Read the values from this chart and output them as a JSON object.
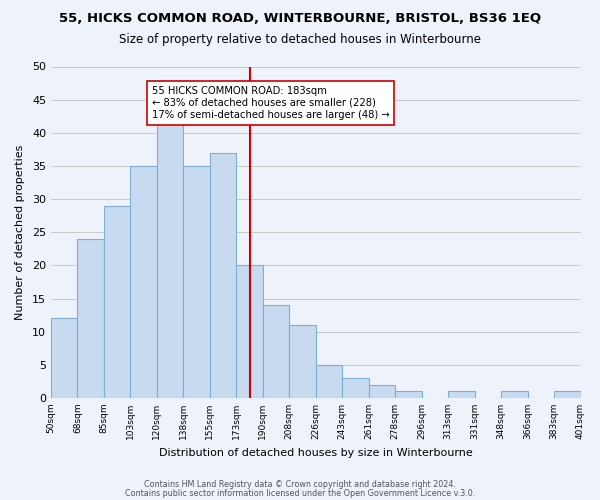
{
  "title": "55, HICKS COMMON ROAD, WINTERBOURNE, BRISTOL, BS36 1EQ",
  "subtitle": "Size of property relative to detached houses in Winterbourne",
  "xlabel": "Distribution of detached houses by size in Winterbourne",
  "ylabel": "Number of detached properties",
  "bin_edges": [
    "50sqm",
    "68sqm",
    "85sqm",
    "103sqm",
    "120sqm",
    "138sqm",
    "155sqm",
    "173sqm",
    "190sqm",
    "208sqm",
    "226sqm",
    "243sqm",
    "261sqm",
    "278sqm",
    "296sqm",
    "313sqm",
    "331sqm",
    "348sqm",
    "366sqm",
    "383sqm",
    "401sqm"
  ],
  "bar_values": [
    12,
    24,
    29,
    35,
    42,
    35,
    37,
    20,
    14,
    11,
    5,
    3,
    2,
    1,
    0,
    1,
    0,
    1,
    0,
    1
  ],
  "bar_color": "#c8daf0",
  "bar_edge_color": "#7bafd4",
  "grid_color": "#c8c8c8",
  "vline_x": 7.5,
  "vline_color": "#cc0000",
  "annotation_text": "55 HICKS COMMON ROAD: 183sqm\n← 83% of detached houses are smaller (228)\n17% of semi-detached houses are larger (48) →",
  "annotation_box_edgecolor": "#cc0000",
  "annotation_box_facecolor": "#ffffff",
  "ylim": [
    0,
    50
  ],
  "yticks": [
    0,
    5,
    10,
    15,
    20,
    25,
    30,
    35,
    40,
    45,
    50
  ],
  "footer1": "Contains HM Land Registry data © Crown copyright and database right 2024.",
  "footer2": "Contains public sector information licensed under the Open Government Licence v.3.0.",
  "bg_color": "#eef2fa"
}
